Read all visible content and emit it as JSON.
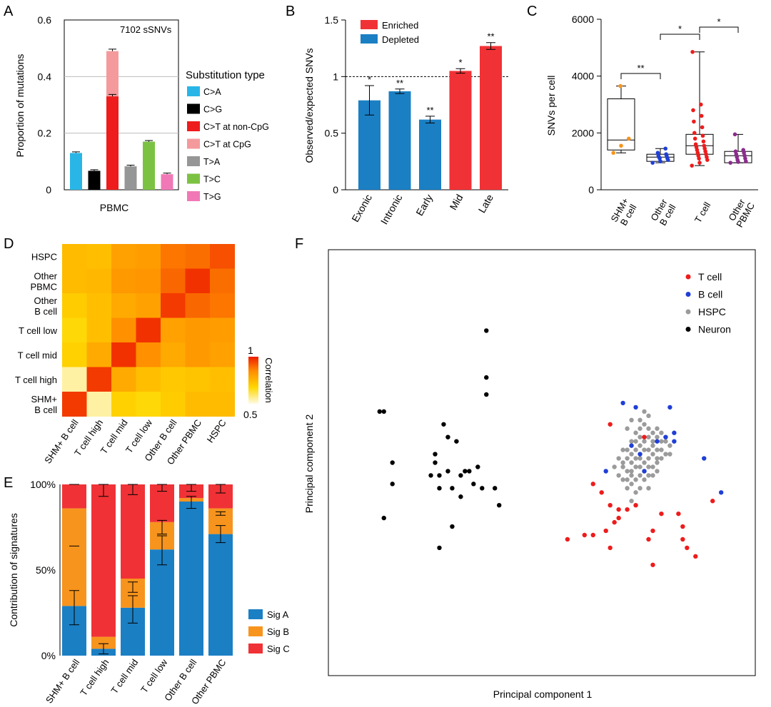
{
  "panel_labels": {
    "a": "A",
    "b": "B",
    "c": "C",
    "d": "D",
    "e": "E",
    "f": "F"
  },
  "chart_data": [
    {
      "id": "A",
      "type": "bar",
      "stacked_total": true,
      "ylabel": "Proportion of mutations",
      "xlabel": "PBMC",
      "annotation": "7102 sSNVs",
      "ylim": [
        0,
        0.6
      ],
      "yticks": [
        0,
        0.2,
        0.4,
        0.6
      ],
      "yticklabels": [
        "0",
        "0.2",
        "0.4",
        "0.6"
      ],
      "gridlines": [
        0.2,
        0.4
      ],
      "legend_title": "Substitution type",
      "categories": [
        "C>A",
        "C>G",
        "C>T",
        "T>A",
        "T>C",
        "T>G"
      ],
      "bars": [
        {
          "label": "C>A",
          "value": 0.13,
          "err": 0.004,
          "color": "#29b6e6"
        },
        {
          "label": "C>G",
          "value": 0.067,
          "err": 0.004,
          "color": "#000000"
        },
        {
          "label": "C>T at non-CpG",
          "value": 0.33,
          "err": 0.007,
          "color": "#ee1c1c",
          "stack_top": {
            "label": "C>T at CpG",
            "value": 0.49,
            "err": 0.007,
            "color": "#f49a9c"
          }
        },
        {
          "label": "T>A",
          "value": 0.083,
          "err": 0.004,
          "color": "#969696"
        },
        {
          "label": "T>C",
          "value": 0.17,
          "err": 0.004,
          "color": "#7cc242"
        },
        {
          "label": "T>G",
          "value": 0.055,
          "err": 0.004,
          "color": "#f178b6"
        }
      ],
      "legend": [
        {
          "label": "C>A",
          "color": "#29b6e6"
        },
        {
          "label": "C>G",
          "color": "#000000"
        },
        {
          "label": "C>T at non-CpG",
          "color": "#ee1c1c"
        },
        {
          "label": "C>T at CpG",
          "color": "#f49a9c"
        },
        {
          "label": "T>A",
          "color": "#969696"
        },
        {
          "label": "T>C",
          "color": "#7cc242"
        },
        {
          "label": "T>G",
          "color": "#f178b6"
        }
      ]
    },
    {
      "id": "B",
      "type": "bar",
      "ylabel": "Observed/expected SNVs",
      "ylim": [
        0,
        1.5
      ],
      "yticks": [
        0,
        0.5,
        1,
        1.5
      ],
      "yticklabels": [
        "0",
        "0.5",
        "1",
        "1.5"
      ],
      "reference_line": 1,
      "categories": [
        "Exonic",
        "Intronic",
        "Early",
        "Mid",
        "Late"
      ],
      "values": [
        0.79,
        0.87,
        0.62,
        1.05,
        1.27
      ],
      "errors": [
        0.13,
        0.02,
        0.03,
        0.02,
        0.03
      ],
      "significance": [
        "*",
        "**",
        "**",
        "*",
        "**"
      ],
      "groups": [
        "Depleted",
        "Depleted",
        "Depleted",
        "Enriched",
        "Enriched"
      ],
      "legend": [
        {
          "label": "Enriched",
          "color": "#f03236"
        },
        {
          "label": "Depleted",
          "color": "#1b7fc4"
        }
      ]
    },
    {
      "id": "C",
      "type": "box",
      "ylabel": "SNVs per cell",
      "ylim": [
        0,
        6000
      ],
      "yticks": [
        0,
        2000,
        4000,
        6000
      ],
      "yticklabels": [
        "0",
        "2000",
        "4000",
        "6000"
      ],
      "categories": [
        "SHM+\nB cell",
        "Other\nB cell",
        "T cell",
        "Other\nPBMC"
      ],
      "boxes": [
        {
          "name": "SHM+ B cell",
          "min": 1300,
          "q1": 1400,
          "median": 1750,
          "q3": 3200,
          "max": 3650,
          "color": "#f7941d",
          "points": [
            1300,
            1550,
            1800,
            3650
          ]
        },
        {
          "name": "Other B cell",
          "min": 950,
          "q1": 1000,
          "median": 1150,
          "q3": 1250,
          "max": 1450,
          "color": "#1f3fd6",
          "points": [
            950,
            1000,
            1050,
            1100,
            1100,
            1150,
            1180,
            1200,
            1250,
            1300,
            1450
          ]
        },
        {
          "name": "T cell",
          "min": 850,
          "q1": 1250,
          "median": 1550,
          "q3": 1950,
          "max": 4850,
          "color": "#ee1c1c",
          "points": [
            850,
            950,
            1050,
            1100,
            1150,
            1200,
            1250,
            1300,
            1350,
            1400,
            1450,
            1500,
            1550,
            1600,
            1700,
            1800,
            1900,
            2000,
            2200,
            2400,
            2600,
            2800,
            3000,
            4850
          ]
        },
        {
          "name": "Other PBMC",
          "min": 950,
          "q1": 950,
          "median": 1200,
          "q3": 1350,
          "max": 1950,
          "color": "#8b2c8c",
          "points": [
            950,
            980,
            1000,
            1050,
            1100,
            1150,
            1200,
            1250,
            1300,
            1350,
            1400,
            1950
          ]
        }
      ],
      "significance": [
        {
          "from": 0,
          "to": 1,
          "label": "**"
        },
        {
          "from": 1,
          "to": 2,
          "label": "*"
        },
        {
          "from": 2,
          "to": 3,
          "label": "*"
        }
      ]
    },
    {
      "id": "D",
      "type": "heatmap",
      "rows": [
        "HSPC",
        "Other\nPBMC",
        "Other\nB cell",
        "T cell low",
        "T cell mid",
        "T cell high",
        "SHM+\nB cell"
      ],
      "columns": [
        "SHM+ B cell",
        "T cell high",
        "T cell mid",
        "T cell low",
        "Other B cell",
        "Other PBMC",
        "HSPC"
      ],
      "values": [
        [
          0.74,
          0.73,
          0.8,
          0.81,
          0.88,
          0.89,
          0.93
        ],
        [
          0.74,
          0.75,
          0.82,
          0.83,
          0.9,
          0.97,
          0.89
        ],
        [
          0.7,
          0.73,
          0.78,
          0.8,
          0.96,
          0.9,
          0.88
        ],
        [
          0.67,
          0.73,
          0.84,
          0.97,
          0.8,
          0.82,
          0.81
        ],
        [
          0.69,
          0.78,
          0.97,
          0.84,
          0.78,
          0.82,
          0.8
        ],
        [
          0.55,
          0.96,
          0.78,
          0.73,
          0.71,
          0.72,
          0.73
        ],
        [
          0.96,
          0.55,
          0.69,
          0.67,
          0.7,
          0.74,
          0.74
        ]
      ],
      "colorbar": {
        "label": "Correlation",
        "min": 0.5,
        "max": 1,
        "min_label": "0.5",
        "max_label": "1"
      }
    },
    {
      "id": "E",
      "type": "stacked_bar",
      "ylabel": "Contribution of signatures",
      "ylim": [
        0,
        100
      ],
      "yticks": [
        0,
        50,
        100
      ],
      "yticklabels": [
        "0%",
        "50%",
        "100%"
      ],
      "categories": [
        "SHM+ B cell",
        "T cell high",
        "T cell mid",
        "T cell low",
        "Other B cell",
        "Other PBMC"
      ],
      "series": [
        {
          "name": "Sig A",
          "color": "#1b7fc4",
          "values": [
            29,
            4,
            28,
            62,
            90,
            71
          ],
          "errors": [
            [
              18,
              38
            ],
            [
              1,
              7
            ],
            [
              19,
              35
            ],
            [
              53,
              70
            ],
            [
              86,
              93
            ],
            [
              66,
              76
            ]
          ]
        },
        {
          "name": "Sig B",
          "color": "#f7941d",
          "values": [
            57,
            7,
            17,
            16,
            2,
            15
          ],
          "errors": [
            [
              64,
              64
            ],
            null,
            [
              37,
              43
            ],
            [
              71,
              79
            ],
            null,
            [
              82,
              84
            ]
          ]
        },
        {
          "name": "Sig C",
          "color": "#f03236",
          "values": [
            14,
            89,
            55,
            22,
            8,
            14
          ],
          "errors": [
            [
              100,
              100
            ],
            [
              93,
              100
            ],
            [
              94,
              100
            ],
            [
              96,
              100
            ],
            [
              96,
              100
            ],
            [
              95,
              100
            ]
          ]
        }
      ],
      "legend": [
        {
          "label": "Sig A",
          "color": "#1b7fc4"
        },
        {
          "label": "Sig B",
          "color": "#f7941d"
        },
        {
          "label": "Sig C",
          "color": "#f03236"
        }
      ]
    },
    {
      "id": "F",
      "type": "scatter",
      "xlabel": "Principal component 1",
      "ylabel": "Principal component 2",
      "xlim": [
        0,
        100
      ],
      "ylim": [
        0,
        100
      ],
      "legend": [
        {
          "label": "T cell",
          "color": "#ee1c1c"
        },
        {
          "label": "B cell",
          "color": "#1f3fd6"
        },
        {
          "label": "HSPC",
          "color": "#9b9b9b"
        },
        {
          "label": "Neuron",
          "color": "#000000"
        }
      ],
      "series": [
        {
          "name": "Neuron",
          "color": "#000000",
          "points": [
            [
              12,
              62
            ],
            [
              13,
              62
            ],
            [
              15,
              50
            ],
            [
              15,
              45
            ],
            [
              13,
              37
            ],
            [
              37,
              81
            ],
            [
              37,
              70
            ],
            [
              37,
              66
            ],
            [
              27,
              59
            ],
            [
              28,
              56
            ],
            [
              30,
              55
            ],
            [
              25,
              52
            ],
            [
              25,
              50
            ],
            [
              24,
              47
            ],
            [
              26,
              47
            ],
            [
              28,
              48
            ],
            [
              26,
              44
            ],
            [
              29,
              44
            ],
            [
              31,
              47
            ],
            [
              32,
              48
            ],
            [
              33,
              48
            ],
            [
              35,
              49
            ],
            [
              34,
              45
            ],
            [
              36,
              44
            ],
            [
              39,
              44
            ],
            [
              40,
              40
            ],
            [
              31,
              42
            ],
            [
              29,
              35
            ],
            [
              26,
              30
            ]
          ]
        },
        {
          "name": "T cell",
          "color": "#ee1c1c",
          "points": [
            [
              66,
              59
            ],
            [
              74,
              56
            ],
            [
              62,
              45
            ],
            [
              64,
              43
            ],
            [
              66,
              40
            ],
            [
              68,
              39
            ],
            [
              70,
              39
            ],
            [
              68,
              37
            ],
            [
              72,
              40
            ],
            [
              67,
              36
            ],
            [
              65,
              34
            ],
            [
              60,
              33
            ],
            [
              62,
              33
            ],
            [
              56,
              32
            ],
            [
              78,
              38
            ],
            [
              82,
              38
            ],
            [
              83,
              35
            ],
            [
              83,
              32
            ],
            [
              84,
              30
            ],
            [
              76,
              34
            ],
            [
              75,
              32
            ],
            [
              66,
              30
            ],
            [
              76,
              26
            ],
            [
              86,
              28
            ],
            [
              90,
              41
            ]
          ]
        },
        {
          "name": "B cell",
          "color": "#1f3fd6",
          "points": [
            [
              69,
              64
            ],
            [
              72,
              63
            ],
            [
              80,
              63
            ],
            [
              71,
              54
            ],
            [
              77,
              55
            ],
            [
              79,
              56
            ],
            [
              81,
              55
            ],
            [
              81,
              57
            ],
            [
              73,
              52
            ],
            [
              88,
              51
            ],
            [
              92,
              43
            ],
            [
              74,
              48
            ],
            [
              65,
              48
            ]
          ]
        },
        {
          "name": "HSPC",
          "color": "#9b9b9b",
          "points": [
            [
              70,
              58
            ],
            [
              71,
              60
            ],
            [
              72,
              57
            ],
            [
              73,
              58
            ],
            [
              74,
              59
            ],
            [
              75,
              58
            ],
            [
              76,
              57
            ],
            [
              77,
              58
            ],
            [
              78,
              57
            ],
            [
              71,
              55
            ],
            [
              72,
              55
            ],
            [
              73,
              56
            ],
            [
              74,
              55
            ],
            [
              75,
              56
            ],
            [
              76,
              55
            ],
            [
              77,
              56
            ],
            [
              78,
              55
            ],
            [
              79,
              55
            ],
            [
              80,
              54
            ],
            [
              69,
              53
            ],
            [
              70,
              53
            ],
            [
              71,
              52
            ],
            [
              72,
              53
            ],
            [
              73,
              54
            ],
            [
              74,
              53
            ],
            [
              75,
              53
            ],
            [
              76,
              54
            ],
            [
              77,
              53
            ],
            [
              78,
              53
            ],
            [
              79,
              52
            ],
            [
              80,
              52
            ],
            [
              68,
              51
            ],
            [
              69,
              50
            ],
            [
              70,
              51
            ],
            [
              71,
              50
            ],
            [
              72,
              51
            ],
            [
              73,
              51
            ],
            [
              74,
              50
            ],
            [
              75,
              51
            ],
            [
              76,
              52
            ],
            [
              77,
              51
            ],
            [
              78,
              51
            ],
            [
              69,
              49
            ],
            [
              70,
              48
            ],
            [
              71,
              48
            ],
            [
              72,
              49
            ],
            [
              73,
              49
            ],
            [
              74,
              48
            ],
            [
              75,
              49
            ],
            [
              76,
              49
            ],
            [
              77,
              50
            ],
            [
              68,
              47
            ],
            [
              70,
              46
            ],
            [
              71,
              47
            ],
            [
              72,
              46
            ],
            [
              73,
              47
            ],
            [
              74,
              46
            ],
            [
              75,
              47
            ],
            [
              71,
              45
            ],
            [
              73,
              44
            ],
            [
              70,
              44
            ],
            [
              75,
              44
            ],
            [
              72,
              43
            ],
            [
              69,
              46
            ],
            [
              76,
              47
            ],
            [
              77,
              48
            ],
            [
              67,
              49
            ],
            [
              73,
              60
            ],
            [
              75,
              61
            ],
            [
              74,
              62
            ],
            [
              71,
              41
            ]
          ]
        }
      ]
    }
  ]
}
